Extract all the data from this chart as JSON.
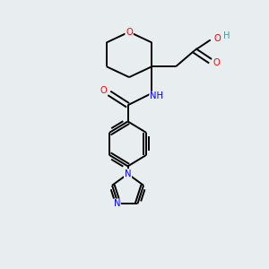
{
  "background_color": "#e8edf0",
  "bond_color": "#000000",
  "atom_colors": {
    "O": "#ff0000",
    "N": "#0000ff",
    "H": "#4a9999"
  },
  "lw": 1.4,
  "fs": 7.2
}
